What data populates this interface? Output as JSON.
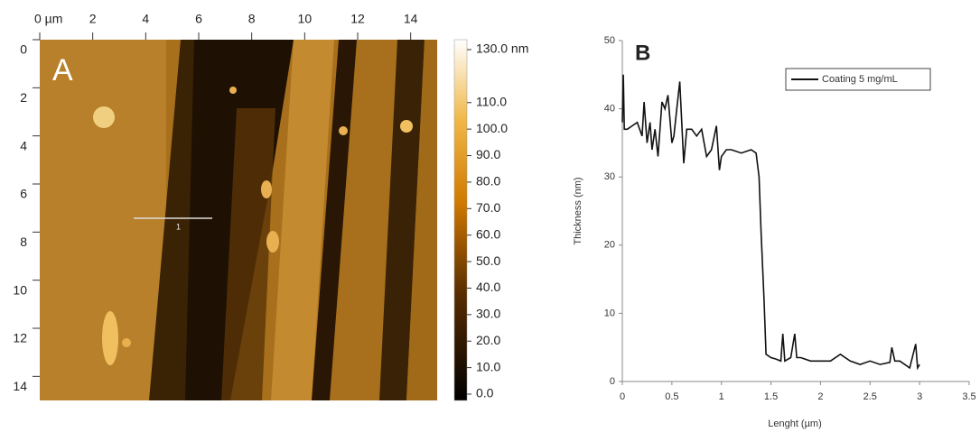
{
  "chart_data": [
    {
      "type": "image",
      "panel_label": "A",
      "annotation": "1",
      "xlim": [
        0,
        15
      ],
      "ylim": [
        0,
        15
      ],
      "xticks": [
        {
          "value": 0,
          "label": "0 µm"
        },
        2,
        4,
        6,
        8,
        10,
        12,
        14
      ],
      "yticks": [
        0,
        2,
        4,
        6,
        8,
        10,
        12,
        14
      ],
      "colorbar_lim": [
        0,
        130
      ],
      "colorbar_ticks": [
        {
          "value": 130,
          "label": "130.0 nm"
        },
        {
          "value": 110,
          "label": "110.0"
        },
        {
          "value": 100,
          "label": "100.0"
        },
        {
          "value": 90,
          "label": "90.0"
        },
        {
          "value": 80,
          "label": "80.0"
        },
        {
          "value": 70,
          "label": "70.0"
        },
        {
          "value": 60,
          "label": "60.0"
        },
        {
          "value": 50,
          "label": "50.0"
        },
        {
          "value": 40,
          "label": "40.0"
        },
        {
          "value": 30,
          "label": "30.0"
        },
        {
          "value": 20,
          "label": "20.0"
        },
        {
          "value": 10,
          "label": "10.0"
        },
        {
          "value": 0,
          "label": "0.0"
        }
      ]
    },
    {
      "type": "line",
      "panel_label": "B",
      "x_label": "Lenght (µm)",
      "y_label": "Thickness (nm)",
      "xlim": [
        0,
        3.5
      ],
      "ylim": [
        0,
        50
      ],
      "xticks": [
        0,
        0.5,
        1,
        1.5,
        2,
        2.5,
        3,
        3.5
      ],
      "yticks": [
        0,
        10,
        20,
        30,
        40,
        50
      ],
      "legend": "upper right",
      "x": [
        0,
        0.01,
        0.02,
        0.05,
        0.1,
        0.15,
        0.2,
        0.22,
        0.25,
        0.28,
        0.3,
        0.33,
        0.36,
        0.4,
        0.43,
        0.46,
        0.5,
        0.52,
        0.55,
        0.58,
        0.6,
        0.62,
        0.65,
        0.7,
        0.75,
        0.8,
        0.85,
        0.9,
        0.95,
        0.98,
        1.0,
        1.05,
        1.1,
        1.2,
        1.3,
        1.35,
        1.38,
        1.4,
        1.43,
        1.45,
        1.5,
        1.55,
        1.6,
        1.62,
        1.64,
        1.7,
        1.74,
        1.76,
        1.8,
        1.9,
        2.0,
        2.1,
        2.2,
        2.3,
        2.4,
        2.5,
        2.6,
        2.7,
        2.72,
        2.75,
        2.8,
        2.9,
        2.96,
        2.98,
        3.0
      ],
      "series": [
        {
          "name": "Coating 5 mg/mL",
          "color": "#111111",
          "values": [
            38,
            45,
            37,
            37,
            37.5,
            38,
            36,
            41,
            35,
            38,
            34,
            37,
            33,
            41,
            40,
            42,
            35,
            36,
            40,
            44,
            38,
            32,
            37,
            37,
            36,
            37,
            33,
            34,
            37.5,
            31,
            33,
            34,
            34,
            33.5,
            34,
            33.5,
            30,
            22,
            12,
            4,
            3.5,
            3.3,
            3,
            7,
            3,
            3.5,
            7,
            3.5,
            3.5,
            3,
            3,
            3,
            4,
            3,
            2.5,
            3,
            2.5,
            2.8,
            5,
            3,
            3,
            2,
            5.5,
            2,
            2.5
          ]
        }
      ]
    }
  ]
}
